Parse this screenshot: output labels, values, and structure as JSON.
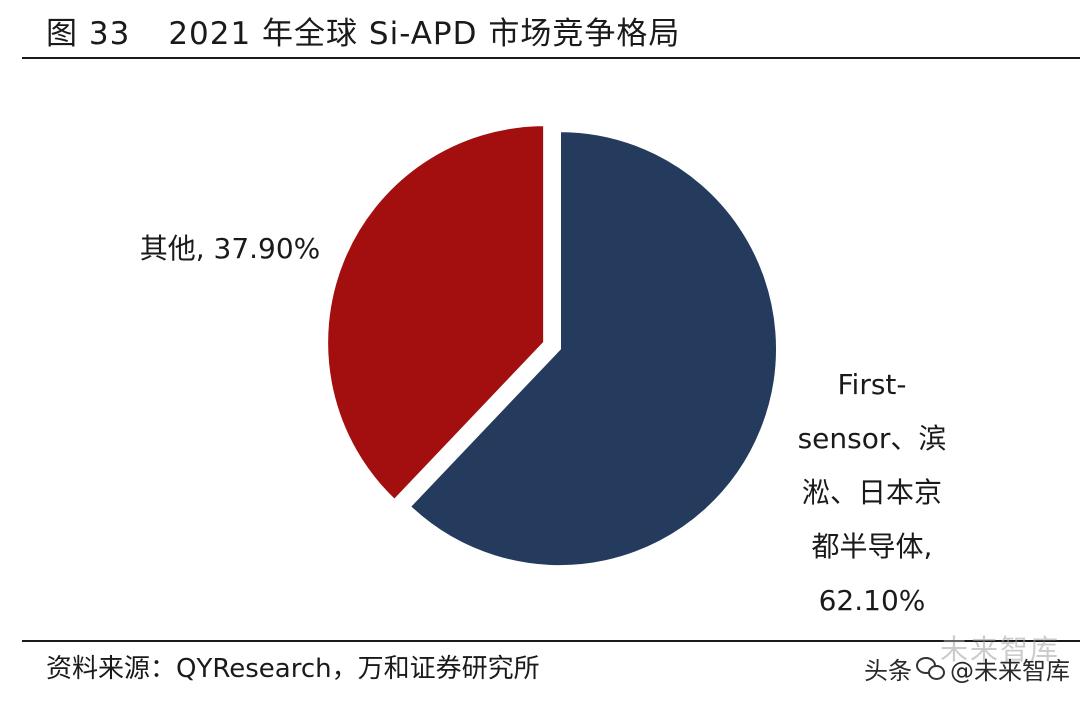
{
  "figure": {
    "number": "图 33",
    "title": "2021 年全球 Si-APD 市场竞争格局"
  },
  "chart_data": {
    "type": "pie",
    "title": "2021 年全球 Si-APD 市场竞争格局",
    "slices": [
      {
        "label": "First-sensor、滨淞、日本京都半导体",
        "label_lines": [
          "First-",
          "sensor、滨",
          "淞、日本京",
          "都半导体,",
          "62.10%"
        ],
        "value": 62.1,
        "value_text": "62.10%",
        "color": "#243b5e"
      },
      {
        "label": "其他",
        "label_lines": [
          "其他, 37.90%"
        ],
        "value": 37.9,
        "value_text": "37.90%",
        "color": "#a30f0f"
      }
    ],
    "start": "12 o'clock",
    "direction": "clockwise",
    "legend": "none"
  },
  "source": {
    "text": "资料来源：QYResearch，万和证券研究所"
  },
  "watermark": {
    "text_before": "头条",
    "text_after": "@未来智库",
    "logo_text": "未来智库"
  }
}
